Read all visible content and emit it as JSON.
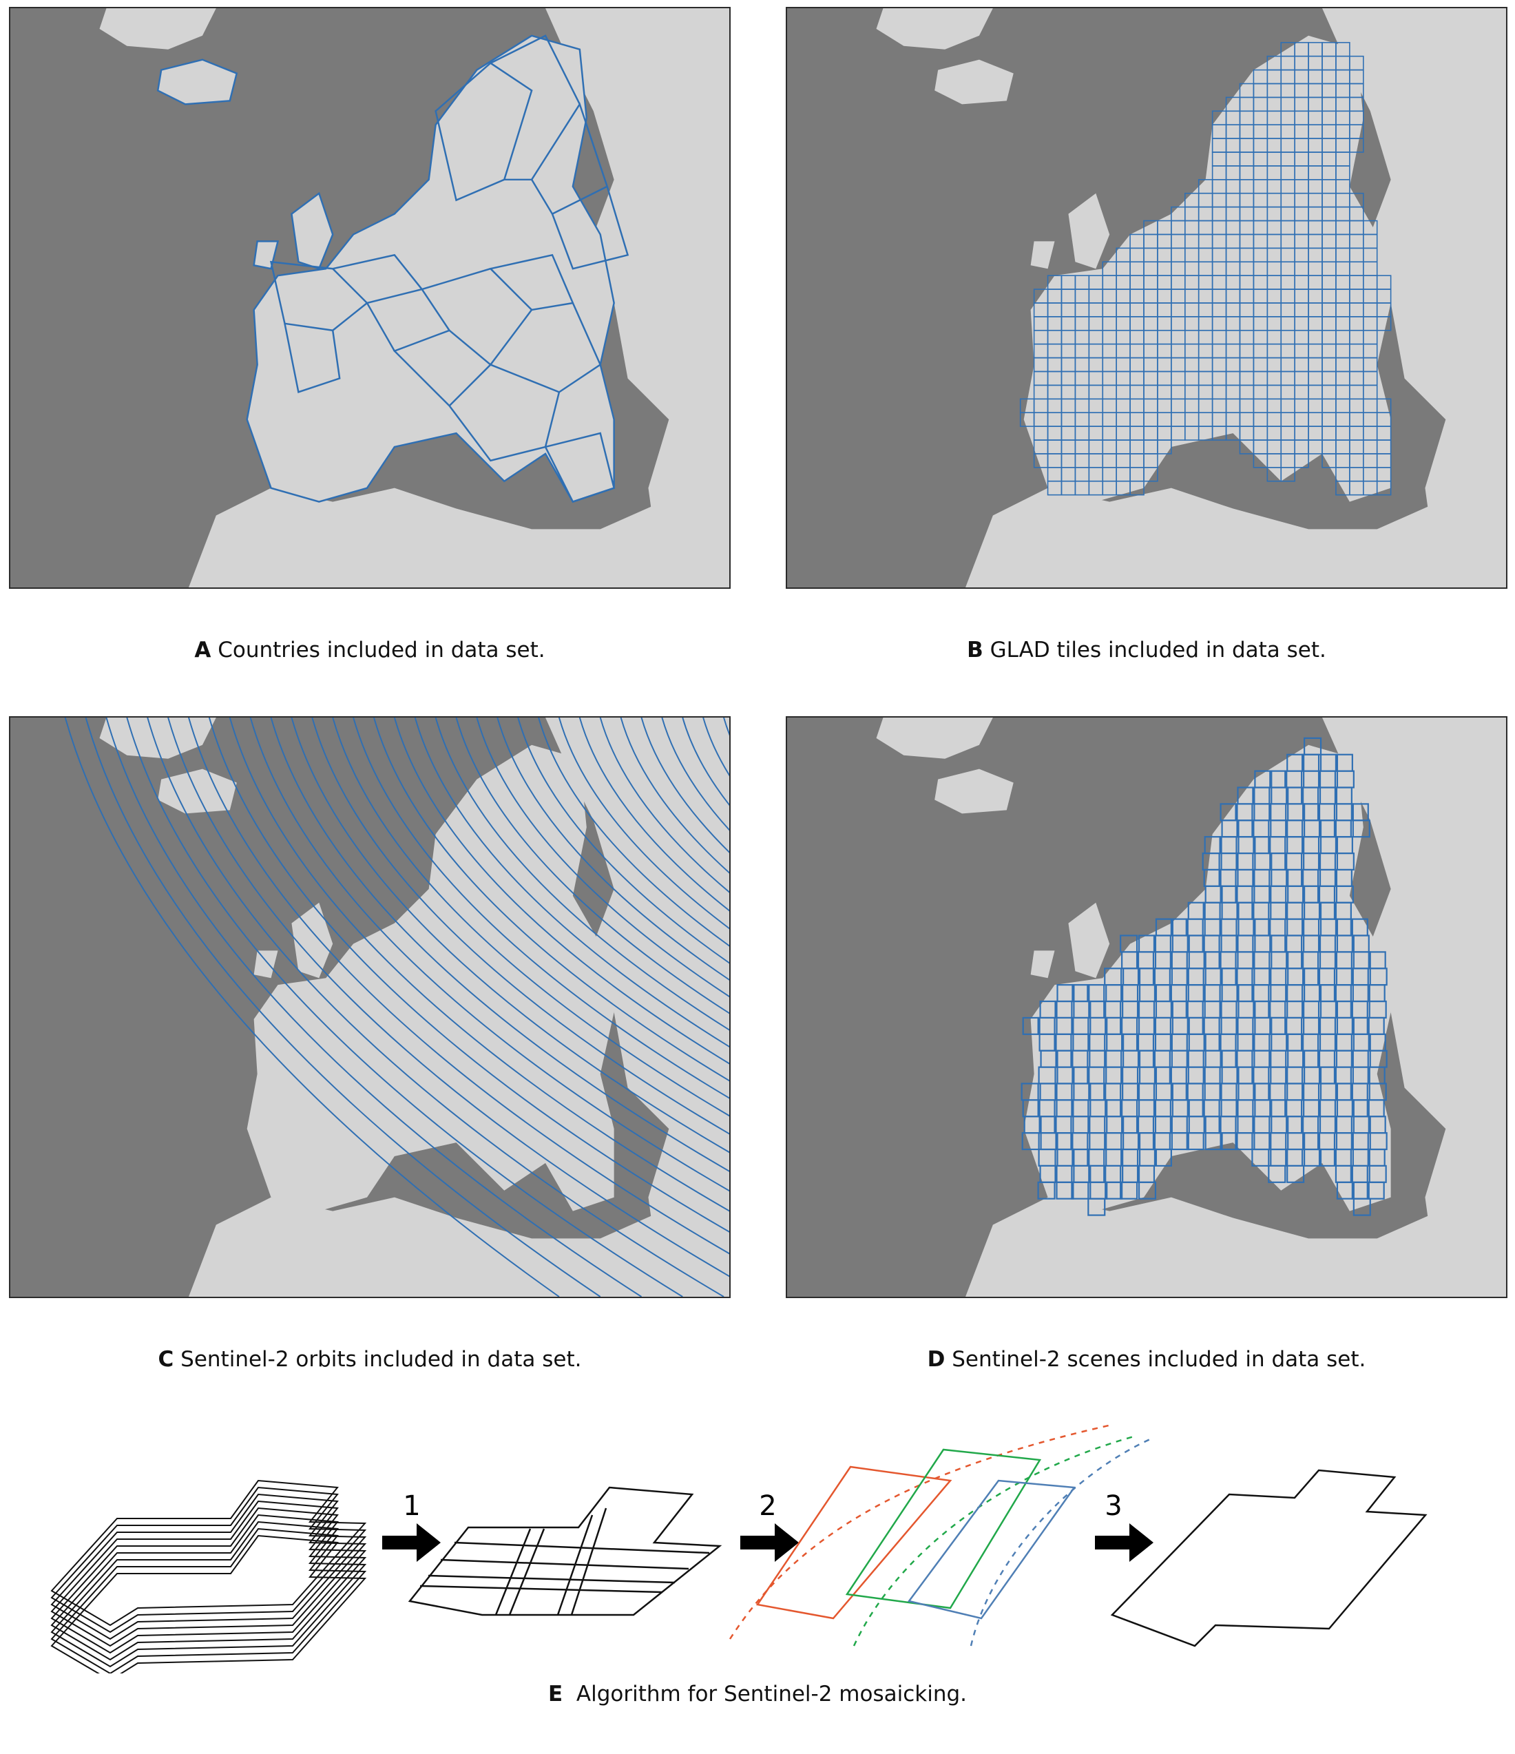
{
  "colors": {
    "sea": "#7a7a7a",
    "land": "#d4d4d4",
    "boundary": "#2f6fb3",
    "orange": "#e4572e",
    "green": "#21a84a",
    "blue": "#4f7fb5",
    "black": "#111111"
  },
  "panels": [
    {
      "letter": "A",
      "caption": "Countries included in data set."
    },
    {
      "letter": "B",
      "caption": "GLAD tiles included in data set."
    },
    {
      "letter": "C",
      "caption": "Sentinel-2 orbits included in data set."
    },
    {
      "letter": "D",
      "caption": "Sentinel-2 scenes included in data set."
    }
  ],
  "diagram": {
    "letter": "E",
    "caption": "Algorithm for Sentinel-2 mosaicking.",
    "steps": [
      "1",
      "2",
      "3"
    ]
  }
}
